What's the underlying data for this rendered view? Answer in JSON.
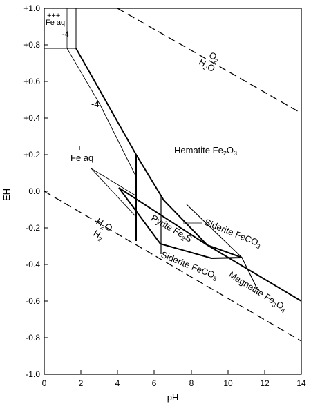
{
  "axes": {
    "xlabel": "pH",
    "ylabel": "EH",
    "xlim": [
      0,
      14
    ],
    "ylim": [
      -1.0,
      1.0
    ],
    "x_ticks": [
      "0",
      "2",
      "4",
      "6",
      "8",
      "10",
      "12",
      "14"
    ],
    "y_ticks": [
      "+1.0",
      "+0.8",
      "+0.6",
      "+0.4",
      "+0.2",
      "0.0",
      "-0.2",
      "-0.4",
      "-0.6",
      "-0.8",
      "-1.0"
    ]
  },
  "labels": {
    "fe3_plus": "+++",
    "fe3_aq": "Fe aq",
    "minus4_top": "-4",
    "o2": "O",
    "o2_sub": "2",
    "h2o_top": "H",
    "h2o_top_sub": "2",
    "h2o_top_o": "O",
    "minus4_mid": "-4",
    "fe2_plus": "++",
    "fe2_aq": "Fe aq",
    "hematite": "Hematite Fe",
    "hematite_sub": "2",
    "hematite_o": "O",
    "hematite_sub2": "3",
    "h2o_bot": "H",
    "h2o_bot_sub": "2",
    "h2o_bot_o": "O",
    "h2_bot": "H",
    "h2_bot_sub": "2",
    "pyrite": "Pyrite Fe",
    "pyrite_sub": "2",
    "pyrite_s": "S",
    "siderite_upper": "Siderite FeCO",
    "siderite_upper_sub": "3",
    "siderite_lower": "Siderite FeCO",
    "siderite_lower_sub": "3",
    "magnetite": "Magnetite Fe",
    "magnetite_sub": "3",
    "magnetite_o": "O",
    "magnetite_sub2": "4"
  },
  "colors": {
    "line": "#000000",
    "background": "#ffffff"
  }
}
